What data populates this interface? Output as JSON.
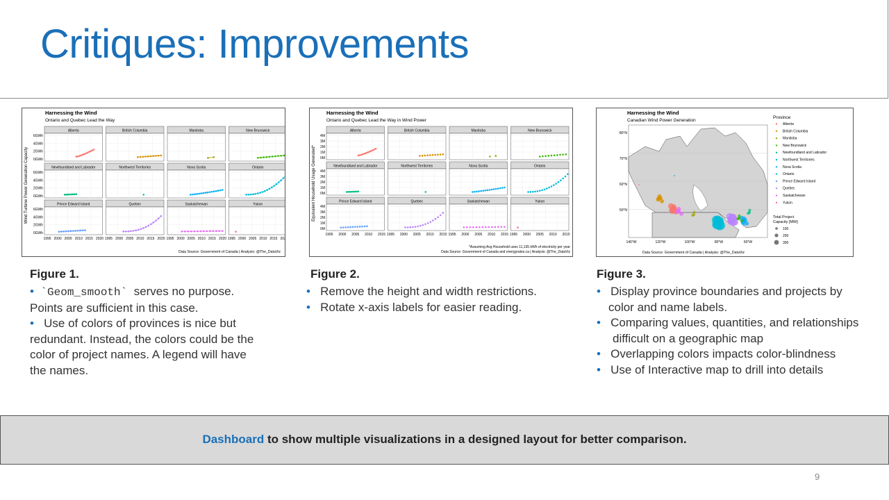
{
  "slide": {
    "title": "Critiques: Improvements",
    "page_number": "9"
  },
  "figure1": {
    "chart_title": "Harnessing the Wind",
    "chart_subtitle": "Ontario and Quebec Lead the Way",
    "ylabel": "Wind Turbine Power Generation Capacity",
    "yticks": [
      "6GWh",
      "4GWh",
      "2GWh",
      "0GWh"
    ],
    "xticks": [
      "1995",
      "2000",
      "2005",
      "2010",
      "2015",
      "2020"
    ],
    "source": "Data Source: Government of Canada | Analysis: @The_DataViz",
    "caption_title": "Figure 1.",
    "bullet1_code": "`Geom_smooth`",
    "bullet1_text": "serves no purpose.",
    "bullet1_text2": "Points are sufficient in this case.",
    "bullet2_line1": "Use of colors of provinces is nice but",
    "bullet2_line2": "redundant. Instead, the colors could be the",
    "bullet2_line3": "color of project names. A legend will have",
    "bullet2_line4": "the names."
  },
  "figure2": {
    "chart_title": "Harnessing the Wind",
    "chart_subtitle": "Ontario and Quebec Lead the Way in Wind Power",
    "ylabel": "Equivalent Household Usage Generated*",
    "yticks": [
      "4M",
      "3M",
      "2M",
      "1M",
      "0M"
    ],
    "xticks": [
      "1995",
      "2000",
      "2005",
      "2010",
      "2015"
    ],
    "note": "*Assuming Avg Household uses 11,135 kWh of electricity per year",
    "source": "Data Source: Government of Canada and energyrates.ca | Analysis: @The_DataViz",
    "caption_title": "Figure 2.",
    "bullet1": "Remove the height and width restrictions.",
    "bullet2": "Rotate x-axis labels for easier reading."
  },
  "figure3": {
    "chart_title": "Harnessing the Wind",
    "chart_subtitle": "Canadian Wind Power Generation",
    "lat_ticks": [
      "80°N",
      "70°N",
      "60°N",
      "50°N"
    ],
    "lon_ticks": [
      "140°W",
      "120°W",
      "100°W",
      "80°W",
      "60°W"
    ],
    "legend_title": "Province",
    "size_legend_title_1": "Total Project",
    "size_legend_title_2": "Capacity [MW]",
    "size_legend": [
      "100",
      "200",
      "300"
    ],
    "source": "Data Source: Government of Canada | Analysis: @The_DataViz",
    "caption_title": "Figure 3.",
    "bullet1_line1": "Display province boundaries and projects by",
    "bullet1_line2": "color and name labels.",
    "bullet2_line1": "Comparing values, quantities, and relationships",
    "bullet2_line2": "difficult on a geographic map",
    "bullet3": "Overlapping colors impacts color-blindness",
    "bullet4": "Use of Interactive map to drill into details"
  },
  "provinces": [
    {
      "name": "Alberta",
      "color": "#f8766d"
    },
    {
      "name": "British Columbia",
      "color": "#d89000"
    },
    {
      "name": "Manitoba",
      "color": "#a3a500"
    },
    {
      "name": "New Brunswick",
      "color": "#39b600"
    },
    {
      "name": "Newfoundland and Labrador",
      "color": "#00bf7d"
    },
    {
      "name": "Northwest Territories",
      "color": "#00bfc4"
    },
    {
      "name": "Nova Scotia",
      "color": "#00b0f6"
    },
    {
      "name": "Ontario",
      "color": "#00bcd8"
    },
    {
      "name": "Prince Edward Island",
      "color": "#619cff"
    },
    {
      "name": "Quebec",
      "color": "#b983ff"
    },
    {
      "name": "Saskatchewan",
      "color": "#e76bf3"
    },
    {
      "name": "Yukon",
      "color": "#ff67a4"
    }
  ],
  "bottom": {
    "highlight": "Dashboard",
    "text": " to show multiple visualizations in a designed layout for better comparison."
  }
}
